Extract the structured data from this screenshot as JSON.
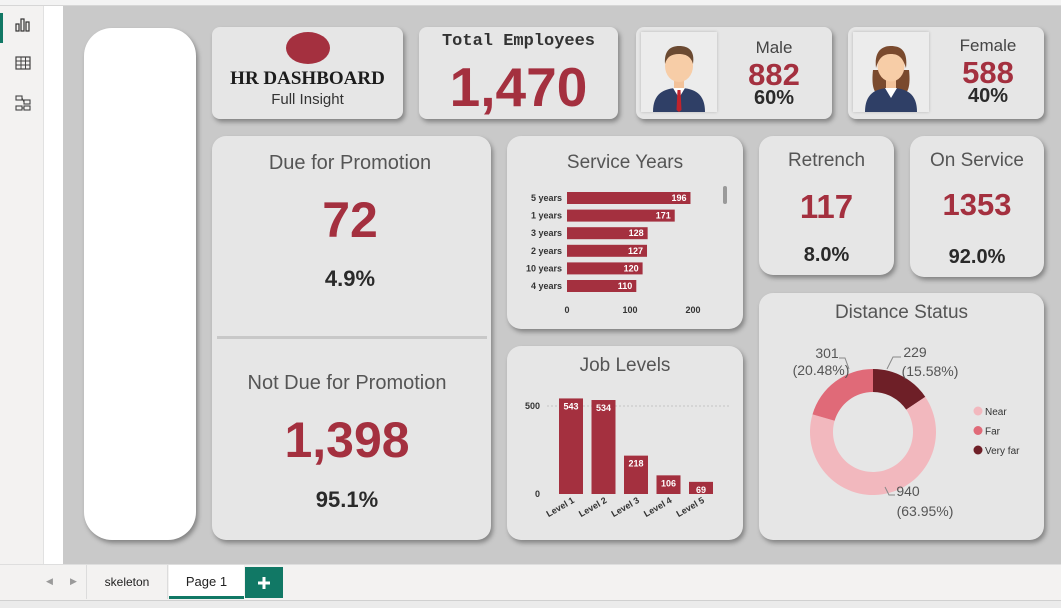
{
  "header": {
    "title": "HR DASHBOARD",
    "subtitle": "Full Insight"
  },
  "total_employees": {
    "label": "Total Employees",
    "value": "1,470"
  },
  "male": {
    "label": "Male",
    "value": "882",
    "pct": "60%"
  },
  "female": {
    "label": "Female",
    "value": "588",
    "pct": "40%"
  },
  "promotion": {
    "due_label": "Due for Promotion",
    "due_value": "72",
    "due_pct": "4.9%",
    "not_due_label": "Not Due for Promotion",
    "not_due_value": "1,398",
    "not_due_pct": "95.1%"
  },
  "retrench": {
    "label": "Retrench",
    "value": "117",
    "pct": "8.0%"
  },
  "on_service": {
    "label": "On Service",
    "value": "1353",
    "pct": "92.0%"
  },
  "colors": {
    "accent": "#a4303f",
    "near": "#f2b8be",
    "far": "#e06a78",
    "very_far": "#6e1f27",
    "tab_accent": "#117865"
  },
  "icons": [
    "report-view-icon",
    "table-view-icon",
    "model-view-icon",
    "male-avatar-icon",
    "female-avatar-icon",
    "add-page-icon"
  ],
  "tabs": [
    {
      "label": "skeleton"
    },
    {
      "label": "Page 1"
    }
  ],
  "chart_data": [
    {
      "type": "bar",
      "orientation": "horizontal",
      "title": "Service Years",
      "categories": [
        "5 years",
        "1 years",
        "3 years",
        "2 years",
        "10 years",
        "4 years"
      ],
      "values": [
        196,
        171,
        128,
        127,
        120,
        110
      ],
      "xlim": [
        0,
        220
      ],
      "xticks": [
        "0",
        "100",
        "200"
      ]
    },
    {
      "type": "bar",
      "title": "Job Levels",
      "categories": [
        "Level 1",
        "Level 2",
        "Level 3",
        "Level 4",
        "Level 5"
      ],
      "values": [
        543,
        534,
        218,
        106,
        69
      ],
      "ylim": [
        0,
        600
      ],
      "yticks": [
        "0",
        "500"
      ]
    },
    {
      "type": "pie",
      "donut": true,
      "title": "Distance Status",
      "legend_position": "right",
      "slices": [
        {
          "name": "Near",
          "value": 940,
          "label": "940",
          "pct_label": "(63.95%)"
        },
        {
          "name": "Far",
          "value": 301,
          "label": "301",
          "pct_label": "(20.48%)"
        },
        {
          "name": "Very far",
          "value": 229,
          "label": "229",
          "pct_label": "(15.58%)"
        }
      ]
    }
  ]
}
